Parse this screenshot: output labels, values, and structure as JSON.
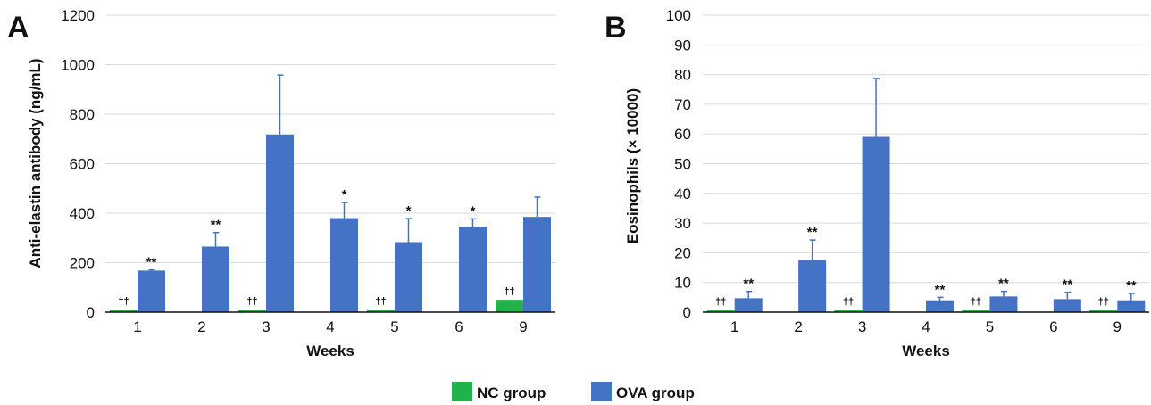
{
  "colors": {
    "nc": "#22b24c",
    "ova": "#4472c4",
    "grid": "#d9d9d9",
    "axis": "#111111"
  },
  "legend": [
    {
      "name": "NC group",
      "color": "#22b24c"
    },
    {
      "name": "OVA group",
      "color": "#4472c4"
    }
  ],
  "chart_data": [
    {
      "panel": "A",
      "type": "bar",
      "title": "",
      "xlabel": "Weeks",
      "ylabel": "Anti-elastin antibody (ng/mL)",
      "categories": [
        "1",
        "2",
        "3",
        "4",
        "5",
        "6",
        "9"
      ],
      "ylim": [
        0,
        1200
      ],
      "yticks": [
        0,
        200,
        400,
        600,
        800,
        1000,
        1200
      ],
      "grid": true,
      "legend_position": "bottom",
      "series": [
        {
          "name": "NC group",
          "color": "#22b24c",
          "values": [
            10,
            null,
            10,
            null,
            10,
            null,
            50
          ],
          "errors": [
            null,
            null,
            null,
            null,
            null,
            null,
            null
          ],
          "annotations": [
            "††",
            "",
            "††",
            "",
            "††",
            "",
            "††"
          ]
        },
        {
          "name": "OVA group",
          "color": "#4472c4",
          "values": [
            168,
            265,
            718,
            380,
            283,
            345,
            385
          ],
          "errors": [
            3,
            57,
            240,
            63,
            95,
            32,
            80
          ],
          "annotations": [
            "**",
            "**",
            "",
            "*",
            "*",
            "*",
            ""
          ]
        }
      ]
    },
    {
      "panel": "B",
      "type": "bar",
      "title": "",
      "xlabel": "Weeks",
      "ylabel": "Eosinophils (× 10000)",
      "categories": [
        "1",
        "2",
        "3",
        "4",
        "5",
        "6",
        "9"
      ],
      "ylim": [
        0,
        100
      ],
      "yticks": [
        0,
        10,
        20,
        30,
        40,
        50,
        60,
        70,
        80,
        90,
        100
      ],
      "grid": true,
      "legend_position": "bottom",
      "series": [
        {
          "name": "NC group",
          "color": "#22b24c",
          "values": [
            0.7,
            null,
            0.7,
            null,
            0.7,
            null,
            0.7
          ],
          "errors": [
            null,
            null,
            null,
            null,
            null,
            null,
            null
          ],
          "annotations": [
            "††",
            "",
            "††",
            "",
            "††",
            "",
            "††"
          ]
        },
        {
          "name": "OVA group",
          "color": "#4472c4",
          "values": [
            4.7,
            17.5,
            59,
            4.0,
            5.3,
            4.4,
            4.0
          ],
          "errors": [
            2.3,
            6.8,
            19.7,
            1.0,
            1.7,
            2.3,
            2.3
          ],
          "annotations": [
            "**",
            "**",
            "",
            "**",
            "**",
            "**",
            "**"
          ]
        }
      ]
    }
  ]
}
